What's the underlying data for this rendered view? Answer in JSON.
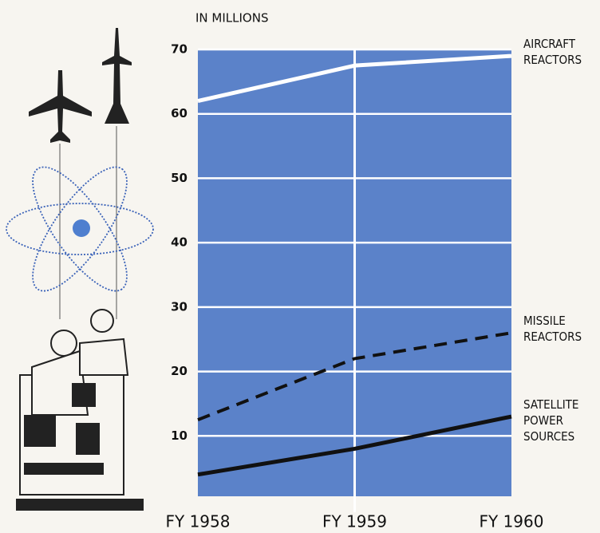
{
  "chart_data": {
    "type": "line",
    "y_label": "IN MILLIONS",
    "categories": [
      "FY 1958",
      "FY 1959",
      "FY 1960"
    ],
    "ylim": [
      0,
      70
    ],
    "yticks": [
      10,
      20,
      30,
      40,
      50,
      60,
      70
    ],
    "grid": true,
    "background": "#5b82c9",
    "series": [
      {
        "name": "AIRCRAFT REACTORS",
        "color": "#ffffff",
        "dash": false,
        "values": [
          62,
          67.5,
          69
        ]
      },
      {
        "name": "MISSILE REACTORS",
        "color": "#111111",
        "dash": true,
        "values": [
          12.5,
          22,
          26
        ]
      },
      {
        "name": "SATELLITE POWER SOURCES",
        "color": "#111111",
        "dash": false,
        "values": [
          4,
          8,
          13
        ]
      }
    ]
  }
}
